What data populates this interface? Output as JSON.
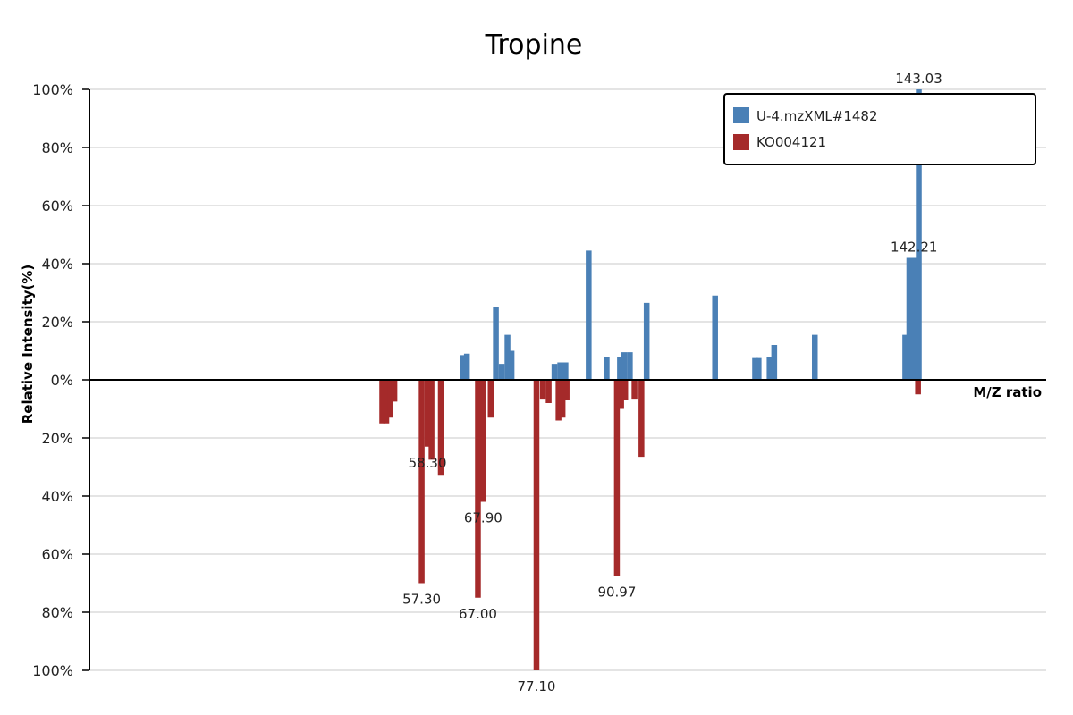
{
  "chart_data": {
    "type": "bar",
    "title": "Tropine",
    "ylabel": "Relative Intensity(%)",
    "xlabel": "M/Z ratio",
    "xlim": [
      0,
      165
    ],
    "ylim": [
      -100,
      100
    ],
    "y_ticks": [
      {
        "value": 100,
        "label": "100%"
      },
      {
        "value": 80,
        "label": "80%"
      },
      {
        "value": 60,
        "label": "60%"
      },
      {
        "value": 40,
        "label": "40%"
      },
      {
        "value": 20,
        "label": "20%"
      },
      {
        "value": 0,
        "label": "0%"
      },
      {
        "value": -20,
        "label": "20%"
      },
      {
        "value": -40,
        "label": "40%"
      },
      {
        "value": -60,
        "label": "60%"
      },
      {
        "value": -80,
        "label": "80%"
      },
      {
        "value": -100,
        "label": "100%"
      }
    ],
    "grid": true,
    "legend": {
      "position": "top-right"
    },
    "colors": {
      "positive": "#4a80b6",
      "negative": "#a52a2a"
    },
    "series": [
      {
        "name": "U-4.mzXML#1482",
        "color": "#4a80b6",
        "direction": "up",
        "points": [
          {
            "mz": 64.4,
            "value": 8.5
          },
          {
            "mz": 65.1,
            "value": 9.0
          },
          {
            "mz": 70.1,
            "value": 25.0
          },
          {
            "mz": 71.1,
            "value": 5.5
          },
          {
            "mz": 72.1,
            "value": 15.5
          },
          {
            "mz": 72.8,
            "value": 10.0
          },
          {
            "mz": 80.2,
            "value": 5.5
          },
          {
            "mz": 81.2,
            "value": 6.0
          },
          {
            "mz": 82.1,
            "value": 6.0
          },
          {
            "mz": 86.1,
            "value": 44.5
          },
          {
            "mz": 89.2,
            "value": 8.0
          },
          {
            "mz": 91.5,
            "value": 8.0
          },
          {
            "mz": 92.2,
            "value": 9.5
          },
          {
            "mz": 93.2,
            "value": 9.5
          },
          {
            "mz": 96.1,
            "value": 26.5
          },
          {
            "mz": 107.9,
            "value": 29.0
          },
          {
            "mz": 114.8,
            "value": 7.5
          },
          {
            "mz": 115.4,
            "value": 7.5
          },
          {
            "mz": 117.3,
            "value": 8.0
          },
          {
            "mz": 118.1,
            "value": 12.0
          },
          {
            "mz": 125.1,
            "value": 15.5
          },
          {
            "mz": 140.7,
            "value": 15.5
          },
          {
            "mz": 141.4,
            "value": 42.0
          },
          {
            "mz": 142.21,
            "value": 42.0,
            "label": "142.21"
          },
          {
            "mz": 143.03,
            "value": 100.0,
            "label": "143.03"
          }
        ]
      },
      {
        "name": "KO004121",
        "color": "#a52a2a",
        "direction": "down",
        "points": [
          {
            "mz": 50.5,
            "value": 15.0
          },
          {
            "mz": 51.2,
            "value": 15.0
          },
          {
            "mz": 51.9,
            "value": 13.0
          },
          {
            "mz": 52.6,
            "value": 7.5
          },
          {
            "mz": 58.3,
            "value": 23.0,
            "label": "58.30"
          },
          {
            "mz": 59.0,
            "value": 27.5
          },
          {
            "mz": 57.3,
            "value": 70.0,
            "label": "57.30"
          },
          {
            "mz": 60.6,
            "value": 33.0
          },
          {
            "mz": 67.0,
            "value": 75.0,
            "label": "67.00"
          },
          {
            "mz": 67.9,
            "value": 42.0,
            "label": "67.90"
          },
          {
            "mz": 69.2,
            "value": 13.0
          },
          {
            "mz": 77.1,
            "value": 100.0,
            "label": "77.10"
          },
          {
            "mz": 78.2,
            "value": 6.5
          },
          {
            "mz": 79.2,
            "value": 8.0
          },
          {
            "mz": 80.9,
            "value": 14.0
          },
          {
            "mz": 81.6,
            "value": 13.0
          },
          {
            "mz": 82.3,
            "value": 7.0
          },
          {
            "mz": 90.97,
            "value": 67.5,
            "label": "90.97"
          },
          {
            "mz": 91.7,
            "value": 10.0
          },
          {
            "mz": 92.4,
            "value": 7.0
          },
          {
            "mz": 94.0,
            "value": 6.5
          },
          {
            "mz": 95.2,
            "value": 26.5
          },
          {
            "mz": 142.9,
            "value": 5.0
          }
        ]
      }
    ]
  }
}
